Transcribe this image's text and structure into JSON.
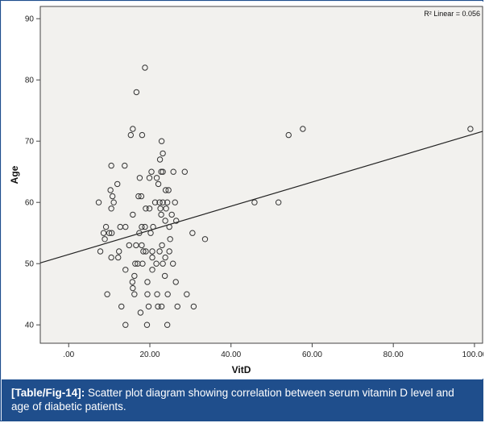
{
  "chart_data": {
    "type": "scatter",
    "title": "",
    "xlabel": "VitD",
    "ylabel": "Age",
    "xlim": [
      -7,
      102
    ],
    "ylim": [
      37,
      92
    ],
    "x_ticks": [
      ".00",
      "20.00",
      "40.00",
      "60.00",
      "80.00",
      "100.00"
    ],
    "x_tick_values": [
      0,
      20,
      40,
      60,
      80,
      100
    ],
    "y_ticks": [
      "40",
      "50",
      "60",
      "70",
      "80",
      "90"
    ],
    "y_tick_values": [
      40,
      50,
      60,
      70,
      80,
      90
    ],
    "annotation": "R² Linear = 0.056",
    "fit_line": {
      "slope": 0.197,
      "intercept": 51.5
    },
    "points": [
      [
        18.8,
        82
      ],
      [
        16.7,
        78
      ],
      [
        15.8,
        72
      ],
      [
        57.7,
        72
      ],
      [
        99.0,
        72
      ],
      [
        15.3,
        71
      ],
      [
        18.1,
        71
      ],
      [
        54.2,
        71
      ],
      [
        22.9,
        70
      ],
      [
        23.2,
        68
      ],
      [
        22.5,
        67
      ],
      [
        10.5,
        66
      ],
      [
        13.8,
        66
      ],
      [
        20.4,
        65
      ],
      [
        22.8,
        65
      ],
      [
        23.2,
        65
      ],
      [
        25.8,
        65
      ],
      [
        28.6,
        65
      ],
      [
        17.5,
        64
      ],
      [
        19.9,
        64
      ],
      [
        21.7,
        64
      ],
      [
        12.0,
        63
      ],
      [
        22.1,
        63
      ],
      [
        10.3,
        62
      ],
      [
        23.9,
        62
      ],
      [
        24.6,
        62
      ],
      [
        10.8,
        61
      ],
      [
        17.2,
        61
      ],
      [
        17.9,
        61
      ],
      [
        7.4,
        60
      ],
      [
        11.1,
        60
      ],
      [
        21.3,
        60
      ],
      [
        22.4,
        60
      ],
      [
        23.2,
        60
      ],
      [
        24.3,
        60
      ],
      [
        26.2,
        60
      ],
      [
        45.8,
        60
      ],
      [
        51.7,
        60
      ],
      [
        10.5,
        59
      ],
      [
        19.0,
        59
      ],
      [
        19.9,
        59
      ],
      [
        22.6,
        59
      ],
      [
        24.0,
        59
      ],
      [
        15.8,
        58
      ],
      [
        22.8,
        58
      ],
      [
        25.4,
        58
      ],
      [
        23.8,
        57
      ],
      [
        26.5,
        57
      ],
      [
        9.2,
        56
      ],
      [
        12.7,
        56
      ],
      [
        14.0,
        56
      ],
      [
        18.0,
        56
      ],
      [
        18.8,
        56
      ],
      [
        20.8,
        56
      ],
      [
        24.8,
        56
      ],
      [
        8.6,
        55
      ],
      [
        10.0,
        55
      ],
      [
        10.6,
        55
      ],
      [
        17.4,
        55
      ],
      [
        20.2,
        55
      ],
      [
        30.5,
        55
      ],
      [
        8.9,
        54
      ],
      [
        25.0,
        54
      ],
      [
        33.6,
        54
      ],
      [
        14.9,
        53
      ],
      [
        16.6,
        53
      ],
      [
        18.0,
        53
      ],
      [
        23.0,
        53
      ],
      [
        7.8,
        52
      ],
      [
        12.4,
        52
      ],
      [
        18.4,
        52
      ],
      [
        19.0,
        52
      ],
      [
        20.6,
        52
      ],
      [
        22.4,
        52
      ],
      [
        24.8,
        52
      ],
      [
        10.5,
        51
      ],
      [
        12.2,
        51
      ],
      [
        20.6,
        51
      ],
      [
        23.8,
        51
      ],
      [
        16.4,
        50
      ],
      [
        17.0,
        50
      ],
      [
        18.2,
        50
      ],
      [
        21.6,
        50
      ],
      [
        23.2,
        50
      ],
      [
        25.7,
        50
      ],
      [
        14.0,
        49
      ],
      [
        20.6,
        49
      ],
      [
        16.2,
        48
      ],
      [
        23.7,
        48
      ],
      [
        15.7,
        47
      ],
      [
        19.4,
        47
      ],
      [
        26.4,
        47
      ],
      [
        15.8,
        46
      ],
      [
        9.5,
        45
      ],
      [
        16.2,
        45
      ],
      [
        19.4,
        45
      ],
      [
        21.8,
        45
      ],
      [
        24.4,
        45
      ],
      [
        29.1,
        45
      ],
      [
        13.0,
        43
      ],
      [
        19.7,
        43
      ],
      [
        22.0,
        43
      ],
      [
        22.9,
        43
      ],
      [
        26.8,
        43
      ],
      [
        30.8,
        43
      ],
      [
        17.7,
        42
      ],
      [
        14.0,
        40
      ],
      [
        19.3,
        40
      ],
      [
        24.3,
        40
      ]
    ]
  },
  "caption": {
    "label": "[Table/Fig-14]:",
    "text": " Scatter plot diagram showing correlation between serum vitamin D level and age of diabetic patients."
  }
}
